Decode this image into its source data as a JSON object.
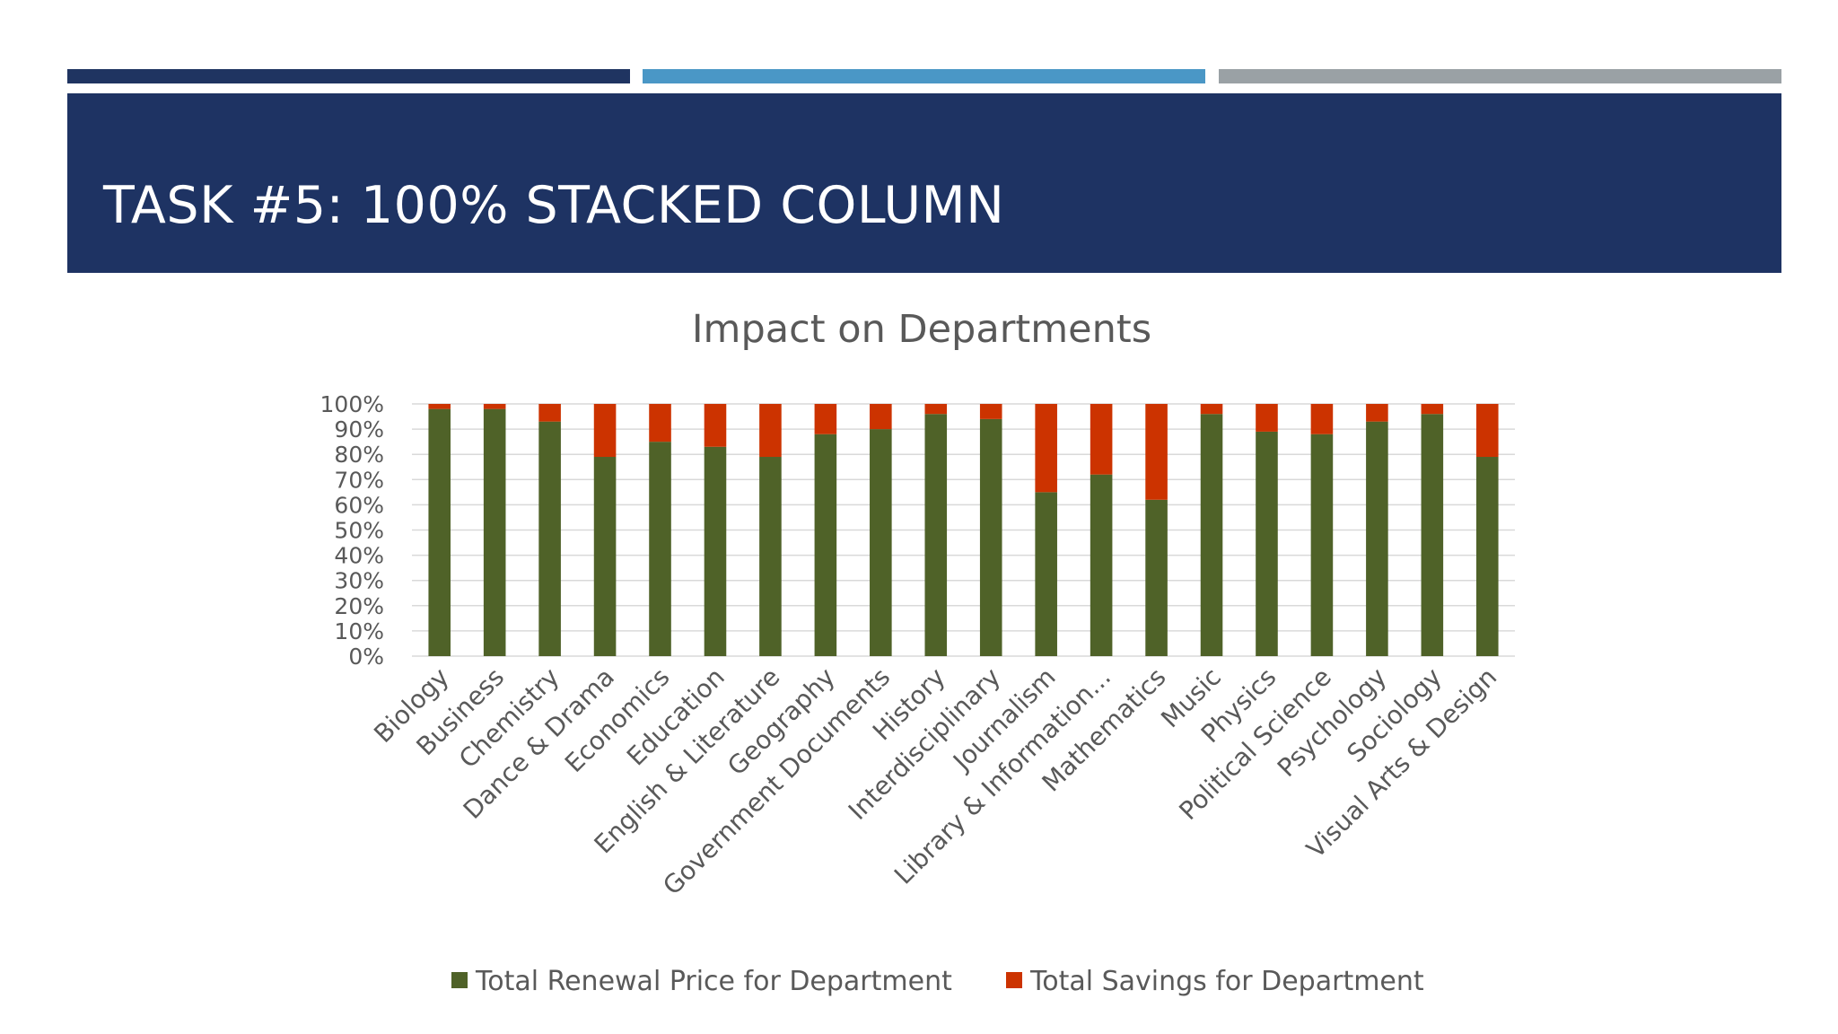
{
  "slide": {
    "title": "TASK #5: 100% STACKED COLUMN",
    "accent_colors": [
      "#1f3461",
      "#4a97c6",
      "#9aa1a5"
    ],
    "header_color": "#1e3363"
  },
  "chart_data": {
    "type": "bar",
    "stacked": "percent",
    "title": "Impact on Departments",
    "xlabel": "",
    "ylabel": "",
    "ylim": [
      0,
      100
    ],
    "y_ticks": [
      "0%",
      "10%",
      "20%",
      "30%",
      "40%",
      "50%",
      "60%",
      "70%",
      "80%",
      "90%",
      "100%"
    ],
    "grid": true,
    "legend_position": "bottom",
    "categories": [
      "Biology",
      "Business",
      "Chemistry",
      "Dance & Drama",
      "Economics",
      "Education",
      "English & Literature",
      "Geography",
      "Government Documents",
      "History",
      "Interdisciplinary",
      "Journalism",
      "Library & Information...",
      "Mathematics",
      "Music",
      "Physics",
      "Political Science",
      "Psychology",
      "Sociology",
      "Visual Arts & Design"
    ],
    "series": [
      {
        "name": "Total Renewal Price for Department",
        "color": "#4f6228",
        "values": [
          98,
          98,
          93,
          79,
          85,
          83,
          79,
          88,
          90,
          96,
          94,
          65,
          72,
          62,
          96,
          89,
          88,
          93,
          96,
          79
        ]
      },
      {
        "name": "Total Savings for Department",
        "color": "#cc3300",
        "values": [
          2,
          2,
          7,
          21,
          15,
          17,
          21,
          12,
          10,
          4,
          6,
          35,
          28,
          38,
          4,
          11,
          12,
          7,
          4,
          21
        ]
      }
    ]
  }
}
